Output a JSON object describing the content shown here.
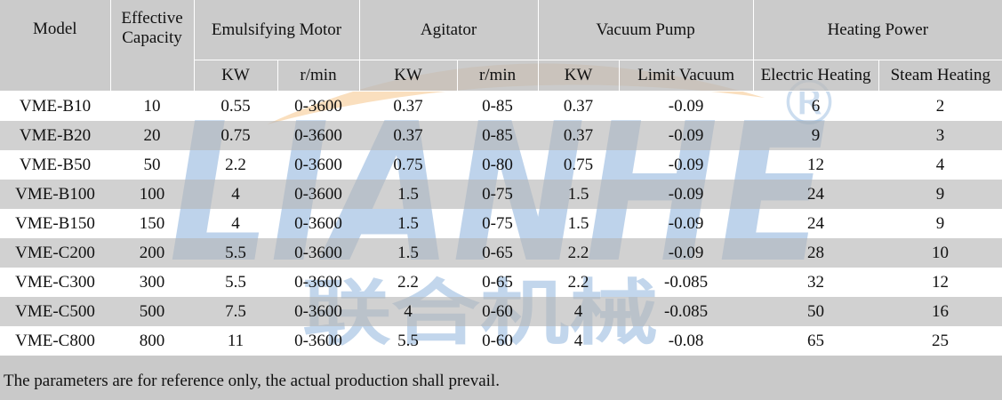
{
  "header": {
    "model": "Model",
    "capacity_line1": "Effective",
    "capacity_line2": "Capacity",
    "groups": {
      "emulsifying_motor": "Emulsifying Motor",
      "agitator": "Agitator",
      "vacuum_pump": "Vacuum Pump",
      "heating_power": "Heating Power"
    },
    "sub": {
      "emu_kw": "KW",
      "emu_rpm": "r/min",
      "agi_kw": "KW",
      "agi_rpm": "r/min",
      "vac_kw": "KW",
      "vac_limit": "Limit Vacuum",
      "electric": "Electric Heating",
      "steam": "Steam Heating"
    }
  },
  "rows": [
    {
      "model": "VME-B10",
      "capacity": "10",
      "emu_kw": "0.55",
      "emu_rpm": "0-3600",
      "agi_kw": "0.37",
      "agi_rpm": "0-85",
      "vac_kw": "0.37",
      "vac_limit": "-0.09",
      "electric": "6",
      "steam": "2"
    },
    {
      "model": "VME-B20",
      "capacity": "20",
      "emu_kw": "0.75",
      "emu_rpm": "0-3600",
      "agi_kw": "0.37",
      "agi_rpm": "0-85",
      "vac_kw": "0.37",
      "vac_limit": "-0.09",
      "electric": "9",
      "steam": "3"
    },
    {
      "model": "VME-B50",
      "capacity": "50",
      "emu_kw": "2.2",
      "emu_rpm": "0-3600",
      "agi_kw": "0.75",
      "agi_rpm": "0-80",
      "vac_kw": "0.75",
      "vac_limit": "-0.09",
      "electric": "12",
      "steam": "4"
    },
    {
      "model": "VME-B100",
      "capacity": "100",
      "emu_kw": "4",
      "emu_rpm": "0-3600",
      "agi_kw": "1.5",
      "agi_rpm": "0-75",
      "vac_kw": "1.5",
      "vac_limit": "-0.09",
      "electric": "24",
      "steam": "9"
    },
    {
      "model": "VME-B150",
      "capacity": "150",
      "emu_kw": "4",
      "emu_rpm": "0-3600",
      "agi_kw": "1.5",
      "agi_rpm": "0-75",
      "vac_kw": "1.5",
      "vac_limit": "-0.09",
      "electric": "24",
      "steam": "9"
    },
    {
      "model": "VME-C200",
      "capacity": "200",
      "emu_kw": "5.5",
      "emu_rpm": "0-3600",
      "agi_kw": "1.5",
      "agi_rpm": "0-65",
      "vac_kw": "2.2",
      "vac_limit": "-0.09",
      "electric": "28",
      "steam": "10"
    },
    {
      "model": "VME-C300",
      "capacity": "300",
      "emu_kw": "5.5",
      "emu_rpm": "0-3600",
      "agi_kw": "2.2",
      "agi_rpm": "0-65",
      "vac_kw": "2.2",
      "vac_limit": "-0.085",
      "electric": "32",
      "steam": "12"
    },
    {
      "model": "VME-C500",
      "capacity": "500",
      "emu_kw": "7.5",
      "emu_rpm": "0-3600",
      "agi_kw": "4",
      "agi_rpm": "0-60",
      "vac_kw": "4",
      "vac_limit": "-0.085",
      "electric": "50",
      "steam": "16"
    },
    {
      "model": "VME-C800",
      "capacity": "800",
      "emu_kw": "11",
      "emu_rpm": "0-3600",
      "agi_kw": "5.5",
      "agi_rpm": "0-60",
      "vac_kw": "4",
      "vac_limit": "-0.08",
      "electric": "65",
      "steam": "25"
    }
  ],
  "footnote": "The parameters are for reference only, the actual production shall prevail.",
  "watermark": {
    "brand": "LIANHE",
    "registered_mark": "®",
    "chinese_name": "联合机械"
  },
  "colors": {
    "header_gray": "#bfbfbf",
    "watermark_blue": "#3d7ec4",
    "watermark_orange": "#f0a040"
  }
}
